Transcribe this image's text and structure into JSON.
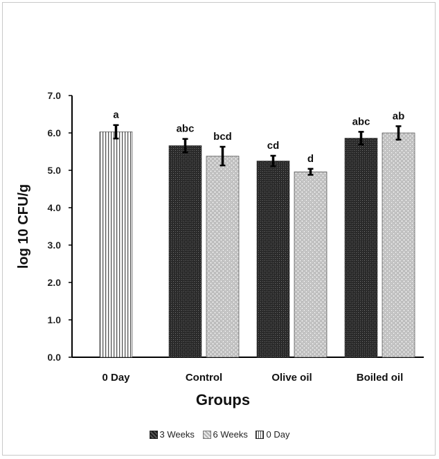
{
  "chart_data": {
    "type": "bar",
    "xlabel": "Groups",
    "ylabel": "log 10 CFU/g",
    "ylim": [
      0,
      7
    ],
    "yticks": [
      "0.0",
      "1.0",
      "2.0",
      "3.0",
      "4.0",
      "5.0",
      "6.0",
      "7.0"
    ],
    "categories": [
      "0 Day",
      "Control",
      "Olive oil",
      "Boiled oil"
    ],
    "series": [
      {
        "name": "3 Weeks",
        "pattern": "dark-weave"
      },
      {
        "name": "6 Weeks",
        "pattern": "light-weave"
      },
      {
        "name": "0 Day",
        "pattern": "vertical-stripes"
      }
    ],
    "bars": [
      {
        "category": "0 Day",
        "series": "0 Day",
        "value": 6.03,
        "error": 0.18,
        "label": "a"
      },
      {
        "category": "Control",
        "series": "3 Weeks",
        "value": 5.66,
        "error": 0.18,
        "label": "abc"
      },
      {
        "category": "Control",
        "series": "6 Weeks",
        "value": 5.38,
        "error": 0.25,
        "label": "bcd"
      },
      {
        "category": "Olive oil",
        "series": "3 Weeks",
        "value": 5.25,
        "error": 0.14,
        "label": "cd"
      },
      {
        "category": "Olive oil",
        "series": "6 Weeks",
        "value": 4.96,
        "error": 0.08,
        "label": "d"
      },
      {
        "category": "Boiled oil",
        "series": "3 Weeks",
        "value": 5.86,
        "error": 0.17,
        "label": "abc"
      },
      {
        "category": "Boiled oil",
        "series": "6 Weeks",
        "value": 6.0,
        "error": 0.18,
        "label": "ab"
      }
    ]
  },
  "legend": [
    "3 Weeks",
    "6 Weeks",
    "0 Day"
  ]
}
